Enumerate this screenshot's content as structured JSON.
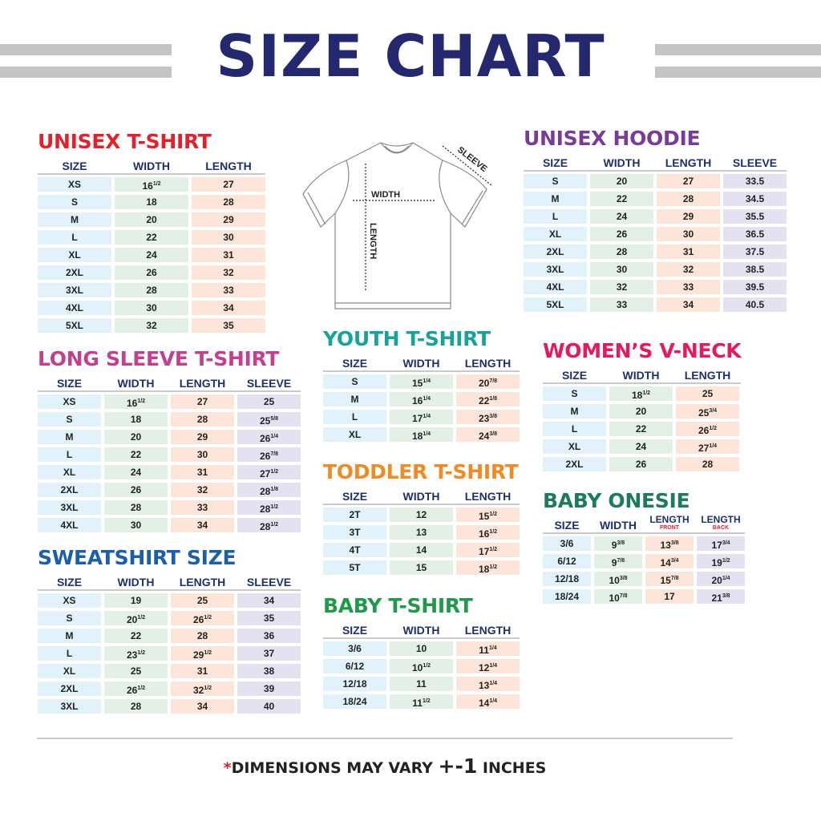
{
  "title": "SIZE CHART",
  "diagram": {
    "width_label": "WIDTH",
    "length_label": "LENGTH",
    "sleeve_label": "SLEEVE"
  },
  "footer": {
    "asterisk": "*",
    "text": "DIMENSIONS MAY VARY ",
    "plus_minus": "+-1",
    "unit": " INCHES"
  },
  "colors": {
    "title": "#24286e",
    "header_text": "#1d2f6e",
    "size_cell": "#e1f2fb",
    "width_cell": "#e2f0e6",
    "length_cell": "#fde6d9",
    "sleeve_cell": "#e4e2f1"
  },
  "tables": [
    {
      "id": "unisex-tshirt",
      "title": "UNISEX T-SHIRT",
      "color": "#e4202a",
      "columns": [
        {
          "label": "SIZE",
          "kind": "size"
        },
        {
          "label": "WIDTH",
          "kind": "width"
        },
        {
          "label": "LENGTH",
          "kind": "length"
        }
      ],
      "rows": [
        [
          "XS",
          "16 1/2",
          "27"
        ],
        [
          "S",
          "18",
          "28"
        ],
        [
          "M",
          "20",
          "29"
        ],
        [
          "L",
          "22",
          "30"
        ],
        [
          "XL",
          "24",
          "31"
        ],
        [
          "2XL",
          "26",
          "32"
        ],
        [
          "3XL",
          "28",
          "33"
        ],
        [
          "4XL",
          "30",
          "34"
        ],
        [
          "5XL",
          "32",
          "35"
        ]
      ]
    },
    {
      "id": "long-sleeve",
      "title": "LONG SLEEVE T-SHIRT",
      "color": "#c2408f",
      "columns": [
        {
          "label": "SIZE",
          "kind": "size"
        },
        {
          "label": "WIDTH",
          "kind": "width"
        },
        {
          "label": "LENGTH",
          "kind": "length"
        },
        {
          "label": "SLEEVE",
          "kind": "sleeve"
        }
      ],
      "rows": [
        [
          "XS",
          "16 1/2",
          "27",
          "25"
        ],
        [
          "S",
          "18",
          "28",
          "25 5/8"
        ],
        [
          "M",
          "20",
          "29",
          "26 1/4"
        ],
        [
          "L",
          "22",
          "30",
          "26 7/8"
        ],
        [
          "XL",
          "24",
          "31",
          "27 1/2"
        ],
        [
          "2XL",
          "26",
          "32",
          "28 1/8"
        ],
        [
          "3XL",
          "28",
          "33",
          "28 1/2"
        ],
        [
          "4XL",
          "30",
          "34",
          "28 1/2"
        ]
      ]
    },
    {
      "id": "sweatshirt",
      "title": "SWEATSHIRT SIZE",
      "color": "#1b5fa8",
      "columns": [
        {
          "label": "SIZE",
          "kind": "size"
        },
        {
          "label": "WIDTH",
          "kind": "width"
        },
        {
          "label": "LENGTH",
          "kind": "length"
        },
        {
          "label": "SLEEVE",
          "kind": "sleeve"
        }
      ],
      "rows": [
        [
          "XS",
          "19",
          "25",
          "34"
        ],
        [
          "S",
          "20 1/2",
          "26 1/2",
          "35"
        ],
        [
          "M",
          "22",
          "28",
          "36"
        ],
        [
          "L",
          "23 1/2",
          "29 1/2",
          "37"
        ],
        [
          "XL",
          "25",
          "31",
          "38"
        ],
        [
          "2XL",
          "26 1/2",
          "32 1/2",
          "39"
        ],
        [
          "3XL",
          "28",
          "34",
          "40"
        ]
      ]
    },
    {
      "id": "youth-tshirt",
      "title": "YOUTH T-SHIRT",
      "color": "#18a39a",
      "columns": [
        {
          "label": "SIZE",
          "kind": "size"
        },
        {
          "label": "WIDTH",
          "kind": "width"
        },
        {
          "label": "LENGTH",
          "kind": "length"
        }
      ],
      "rows": [
        [
          "S",
          "15 1/4",
          "20 7/8"
        ],
        [
          "M",
          "16 1/4",
          "22 1/8"
        ],
        [
          "L",
          "17 1/4",
          "23 3/8"
        ],
        [
          "XL",
          "18 1/4",
          "24 3/8"
        ]
      ]
    },
    {
      "id": "toddler-tshirt",
      "title": "TODDLER T-SHIRT",
      "color": "#f28a24",
      "columns": [
        {
          "label": "SIZE",
          "kind": "size"
        },
        {
          "label": "WIDTH",
          "kind": "width"
        },
        {
          "label": "LENGTH",
          "kind": "length"
        }
      ],
      "rows": [
        [
          "2T",
          "12",
          "15 1/2"
        ],
        [
          "3T",
          "13",
          "16 1/2"
        ],
        [
          "4T",
          "14",
          "17 1/2"
        ],
        [
          "5T",
          "15",
          "18 1/2"
        ]
      ]
    },
    {
      "id": "baby-tshirt",
      "title": "BABY T-SHIRT",
      "color": "#1e9a4a",
      "columns": [
        {
          "label": "SIZE",
          "kind": "size"
        },
        {
          "label": "WIDTH",
          "kind": "width"
        },
        {
          "label": "LENGTH",
          "kind": "length"
        }
      ],
      "rows": [
        [
          "3/6",
          "10",
          "11 1/4"
        ],
        [
          "6/12",
          "10 1/2",
          "12 1/4"
        ],
        [
          "12/18",
          "11",
          "13 1/4"
        ],
        [
          "18/24",
          "11 1/2",
          "14 1/4"
        ]
      ]
    },
    {
      "id": "unisex-hoodie",
      "title": "UNISEX HOODIE",
      "color": "#7a3a9a",
      "columns": [
        {
          "label": "SIZE",
          "kind": "size"
        },
        {
          "label": "WIDTH",
          "kind": "width"
        },
        {
          "label": "LENGTH",
          "kind": "length"
        },
        {
          "label": "SLEEVE",
          "kind": "sleeve"
        }
      ],
      "rows": [
        [
          "S",
          "20",
          "27",
          "33.5"
        ],
        [
          "M",
          "22",
          "28",
          "34.5"
        ],
        [
          "L",
          "24",
          "29",
          "35.5"
        ],
        [
          "XL",
          "26",
          "30",
          "36.5"
        ],
        [
          "2XL",
          "28",
          "31",
          "37.5"
        ],
        [
          "3XL",
          "30",
          "32",
          "38.5"
        ],
        [
          "4XL",
          "32",
          "33",
          "39.5"
        ],
        [
          "5XL",
          "33",
          "34",
          "40.5"
        ]
      ]
    },
    {
      "id": "womens-vneck",
      "title": "WOMEN’S V-NECK",
      "color": "#e5195f",
      "columns": [
        {
          "label": "SIZE",
          "kind": "size"
        },
        {
          "label": "WIDTH",
          "kind": "width"
        },
        {
          "label": "LENGTH",
          "kind": "length"
        }
      ],
      "rows": [
        [
          "S",
          "18 1/2",
          "25"
        ],
        [
          "M",
          "20",
          "25 3/4"
        ],
        [
          "L",
          "22",
          "26 1/2"
        ],
        [
          "XL",
          "24",
          "27 1/4"
        ],
        [
          "2XL",
          "26",
          "28"
        ]
      ]
    },
    {
      "id": "baby-onesie",
      "title": "BABY ONESIE",
      "color": "#1c7c5a",
      "columns": [
        {
          "label": "SIZE",
          "kind": "size"
        },
        {
          "label": "WIDTH",
          "kind": "width"
        },
        {
          "label": "LENGTH",
          "sub": "FRONT",
          "kind": "length"
        },
        {
          "label": "LENGTH",
          "sub": "BACK",
          "kind": "sleeve"
        }
      ],
      "rows": [
        [
          "3/6",
          "9 3/8",
          "13 3/8",
          "17 3/4"
        ],
        [
          "6/12",
          "9 7/8",
          "14 3/4",
          "19 1/2"
        ],
        [
          "12/18",
          "10 3/8",
          "15 7/8",
          "20 1/4"
        ],
        [
          "18/24",
          "10 7/8",
          "17",
          "21 3/8"
        ]
      ]
    }
  ]
}
